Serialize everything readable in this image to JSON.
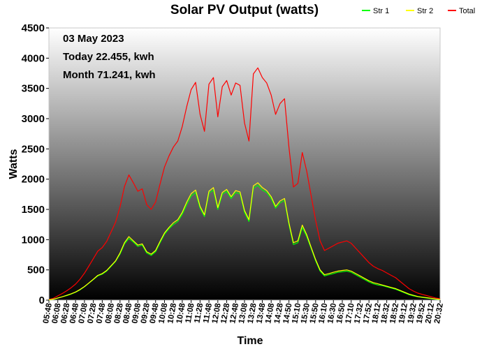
{
  "chart_data": {
    "type": "line",
    "title": "Solar PV Output (watts)",
    "xlabel": "Time",
    "ylabel": "Watts",
    "ylim": [
      0,
      4500
    ],
    "yticks": [
      0,
      500,
      1000,
      1500,
      2000,
      2500,
      3000,
      3500,
      4000,
      4500
    ],
    "grid": false,
    "legend_position": "top-right",
    "background": "vertical gradient white to black",
    "x_tick_labels": [
      "05:48",
      "06:08",
      "06:28",
      "06:48",
      "07:08",
      "07:28",
      "07:48",
      "08:08",
      "08:28",
      "08:48",
      "09:08",
      "09:28",
      "09:48",
      "10:08",
      "10:28",
      "10:48",
      "11:08",
      "11:28",
      "11:48",
      "12:08",
      "12:28",
      "12:48",
      "13:08",
      "13:28",
      "13:48",
      "14:08",
      "14:28",
      "14:50",
      "15:10",
      "15:30",
      "15:50",
      "16:10",
      "16:30",
      "16:50",
      "17:10",
      "17:32",
      "17:52",
      "18:12",
      "18:32",
      "18:52",
      "19:12",
      "19:32",
      "19:52",
      "20:12",
      "20:32"
    ],
    "annotations": [
      "03 May 2023",
      "Today 22.455, kwh",
      "Month 71.241, kwh"
    ],
    "x": [
      "05:48",
      "05:58",
      "06:08",
      "06:18",
      "06:28",
      "06:38",
      "06:48",
      "06:58",
      "07:08",
      "07:18",
      "07:28",
      "07:38",
      "07:48",
      "07:58",
      "08:08",
      "08:18",
      "08:28",
      "08:38",
      "08:48",
      "08:58",
      "09:08",
      "09:18",
      "09:28",
      "09:38",
      "09:48",
      "09:58",
      "10:08",
      "10:18",
      "10:28",
      "10:38",
      "10:48",
      "10:58",
      "11:08",
      "11:18",
      "11:28",
      "11:38",
      "11:48",
      "11:58",
      "12:08",
      "12:18",
      "12:28",
      "12:38",
      "12:48",
      "12:58",
      "13:08",
      "13:18",
      "13:28",
      "13:38",
      "13:48",
      "13:58",
      "14:08",
      "14:18",
      "14:28",
      "14:39",
      "14:50",
      "15:00",
      "15:10",
      "15:20",
      "15:30",
      "15:40",
      "15:50",
      "16:00",
      "16:10",
      "16:20",
      "16:30",
      "16:40",
      "16:50",
      "17:00",
      "17:10",
      "17:21",
      "17:32",
      "17:42",
      "17:52",
      "18:02",
      "18:12",
      "18:22",
      "18:32",
      "18:42",
      "18:52",
      "19:02",
      "19:12",
      "19:22",
      "19:32",
      "19:42",
      "19:52",
      "20:02",
      "20:12",
      "20:22",
      "20:32"
    ],
    "series": [
      {
        "name": "Str 1",
        "color": "#00ff00",
        "values": [
          5,
          15,
          35,
          55,
          75,
          100,
          130,
          170,
          220,
          280,
          340,
          400,
          430,
          480,
          560,
          640,
          760,
          930,
          1020,
          960,
          890,
          910,
          780,
          740,
          800,
          950,
          1090,
          1180,
          1250,
          1300,
          1420,
          1580,
          1720,
          1780,
          1520,
          1380,
          1770,
          1820,
          1500,
          1750,
          1800,
          1680,
          1780,
          1760,
          1450,
          1300,
          1850,
          1900,
          1820,
          1780,
          1680,
          1520,
          1610,
          1650,
          1250,
          920,
          950,
          1200,
          1050,
          850,
          650,
          480,
          400,
          420,
          440,
          460,
          470,
          480,
          460,
          420,
          380,
          340,
          300,
          270,
          250,
          240,
          220,
          200,
          180,
          150,
          120,
          90,
          70,
          55,
          45,
          35,
          25,
          15,
          10
        ]
      },
      {
        "name": "Str 2",
        "color": "#ffff00",
        "values": [
          5,
          15,
          35,
          55,
          80,
          105,
          135,
          175,
          225,
          285,
          345,
          410,
          440,
          490,
          570,
          650,
          780,
          950,
          1050,
          980,
          910,
          930,
          800,
          760,
          820,
          970,
          1110,
          1200,
          1280,
          1330,
          1450,
          1620,
          1760,
          1820,
          1550,
          1410,
          1800,
          1860,
          1530,
          1780,
          1830,
          1710,
          1810,
          1790,
          1480,
          1330,
          1890,
          1940,
          1860,
          1810,
          1710,
          1550,
          1640,
          1680,
          1280,
          950,
          980,
          1240,
          1080,
          870,
          670,
          500,
          420,
          440,
          460,
          480,
          490,
          500,
          480,
          440,
          400,
          360,
          320,
          290,
          270,
          250,
          230,
          210,
          190,
          160,
          130,
          100,
          80,
          60,
          50,
          40,
          30,
          20,
          12
        ]
      },
      {
        "name": "Total",
        "color": "#ff0000",
        "values": [
          10,
          30,
          70,
          110,
          155,
          205,
          265,
          345,
          445,
          565,
          685,
          810,
          870,
          970,
          1130,
          1290,
          1540,
          1880,
          2070,
          1940,
          1800,
          1840,
          1580,
          1500,
          1620,
          1920,
          2200,
          2380,
          2530,
          2630,
          2870,
          3200,
          3480,
          3600,
          3070,
          2790,
          3570,
          3680,
          3030,
          3530,
          3630,
          3390,
          3590,
          3550,
          2930,
          2630,
          3740,
          3840,
          3680,
          3590,
          3390,
          3070,
          3250,
          3330,
          2530,
          1870,
          1930,
          2440,
          2130,
          1720,
          1320,
          980,
          820,
          860,
          900,
          940,
          960,
          980,
          940,
          860,
          780,
          700,
          620,
          560,
          520,
          490,
          450,
          410,
          370,
          310,
          250,
          190,
          150,
          115,
          95,
          75,
          55,
          35,
          22
        ]
      }
    ]
  }
}
